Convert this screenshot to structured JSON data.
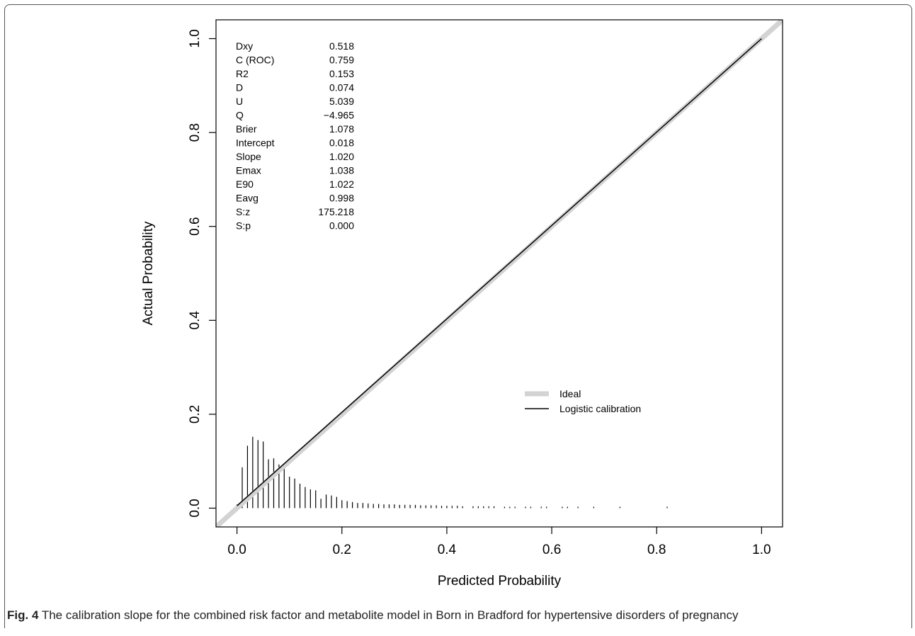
{
  "caption": {
    "label": "Fig. 4",
    "text": "The calibration slope for the combined risk factor and metabolite model in Born in Bradford for hypertensive disorders of pregnancy"
  },
  "chart_data": {
    "type": "line",
    "title": "",
    "xlabel": "Predicted Probability",
    "ylabel": "Actual Probability",
    "xlim": [
      -0.04,
      1.04
    ],
    "ylim": [
      -0.04,
      1.04
    ],
    "xticks": [
      "0.0",
      "0.2",
      "0.4",
      "0.6",
      "0.8",
      "1.0"
    ],
    "yticks": [
      "0.0",
      "0.2",
      "0.4",
      "0.6",
      "0.8",
      "1.0"
    ],
    "grid": false,
    "legend_position": "center-right",
    "series": [
      {
        "name": "Ideal",
        "color": "#d3d3d3",
        "x": [
          -0.04,
          1.04
        ],
        "y": [
          -0.04,
          1.04
        ]
      },
      {
        "name": "Logistic calibration",
        "color": "#000000",
        "x": [
          0.0,
          1.0
        ],
        "y": [
          0.005,
          1.0
        ]
      }
    ],
    "stats": [
      {
        "label": "Dxy",
        "value": "0.518"
      },
      {
        "label": "C (ROC)",
        "value": "0.759"
      },
      {
        "label": "R2",
        "value": "0.153"
      },
      {
        "label": "D",
        "value": "0.074"
      },
      {
        "label": "U",
        "value": "5.039"
      },
      {
        "label": "Q",
        "value": "−4.965"
      },
      {
        "label": "Brier",
        "value": "1.078"
      },
      {
        "label": "Intercept",
        "value": "0.018"
      },
      {
        "label": "Slope",
        "value": "1.020"
      },
      {
        "label": "Emax",
        "value": "1.038"
      },
      {
        "label": "E90",
        "value": "1.022"
      },
      {
        "label": "Eavg",
        "value": "0.998"
      },
      {
        "label": "S:z",
        "value": "175.218"
      },
      {
        "label": "S:p",
        "value": "0.000"
      }
    ],
    "histogram": {
      "x": [
        0.0,
        0.01,
        0.02,
        0.03,
        0.04,
        0.05,
        0.06,
        0.07,
        0.08,
        0.09,
        0.1,
        0.11,
        0.12,
        0.13,
        0.14,
        0.15,
        0.16,
        0.17,
        0.18,
        0.19,
        0.2,
        0.21,
        0.22,
        0.23,
        0.24,
        0.25,
        0.26,
        0.27,
        0.28,
        0.29,
        0.3,
        0.31,
        0.32,
        0.33,
        0.34,
        0.35,
        0.36,
        0.37,
        0.38,
        0.39,
        0.4,
        0.41,
        0.42,
        0.43,
        0.45,
        0.46,
        0.47,
        0.48,
        0.49,
        0.51,
        0.52,
        0.53,
        0.55,
        0.56,
        0.58,
        0.59,
        0.62,
        0.63,
        0.65,
        0.68,
        0.73,
        0.82
      ],
      "heights": [
        0.008,
        0.087,
        0.133,
        0.152,
        0.145,
        0.142,
        0.104,
        0.106,
        0.093,
        0.09,
        0.067,
        0.063,
        0.052,
        0.045,
        0.04,
        0.038,
        0.02,
        0.029,
        0.027,
        0.024,
        0.017,
        0.015,
        0.013,
        0.011,
        0.011,
        0.01,
        0.009,
        0.009,
        0.008,
        0.008,
        0.008,
        0.007,
        0.007,
        0.007,
        0.007,
        0.006,
        0.006,
        0.006,
        0.006,
        0.005,
        0.005,
        0.005,
        0.005,
        0.004,
        0.004,
        0.004,
        0.004,
        0.004,
        0.004,
        0.003,
        0.003,
        0.003,
        0.003,
        0.003,
        0.003,
        0.003,
        0.003,
        0.003,
        0.003,
        0.003,
        0.003,
        0.003
      ]
    }
  }
}
